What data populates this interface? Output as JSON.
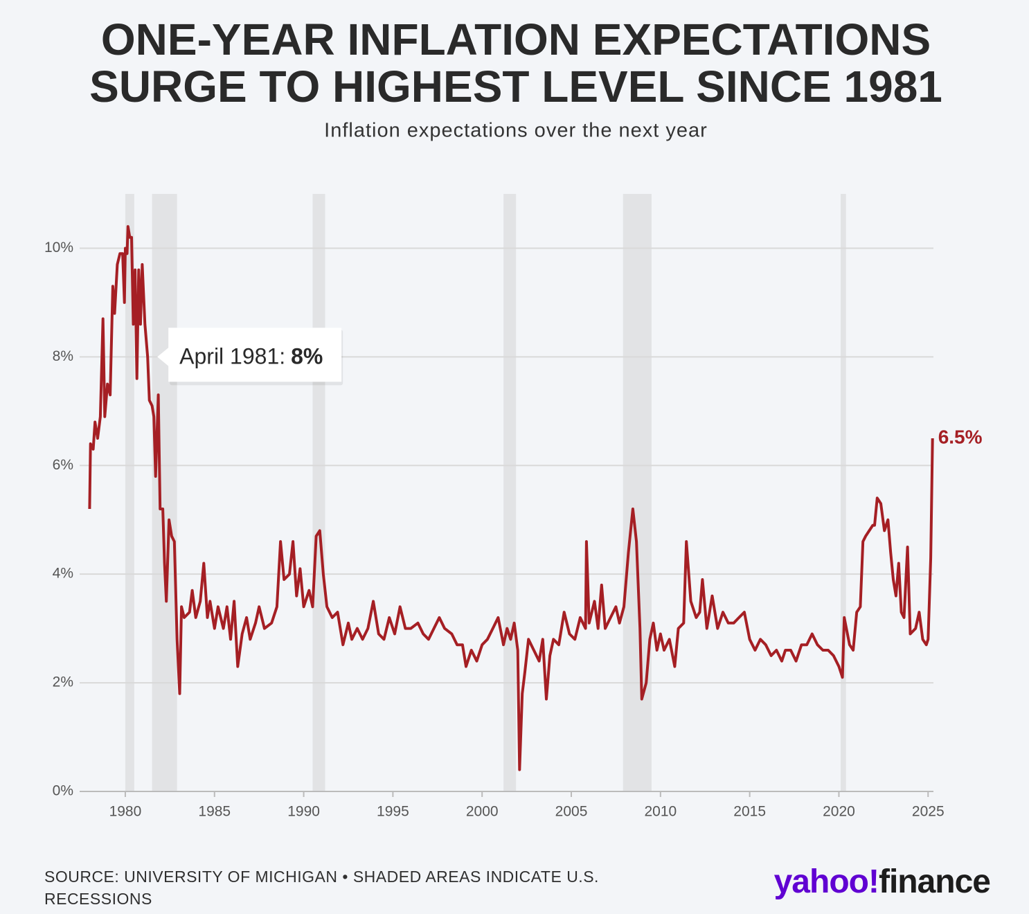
{
  "chart_data": {
    "type": "line",
    "title": "ONE-YEAR INFLATION EXPECTATIONS",
    "title_line2": "SURGE TO HIGHEST LEVEL SINCE 1981",
    "subtitle": "Inflation expectations over the next year",
    "xlim": [
      1977.44,
      2025.3
    ],
    "xticks": [
      1980,
      1985,
      1990,
      1995,
      2000,
      2005,
      2010,
      2015,
      2020,
      2025
    ],
    "ylim": [
      0,
      11
    ],
    "yticks": [
      {
        "value": 0,
        "label": "0%"
      },
      {
        "value": 2,
        "label": "2%"
      },
      {
        "value": 4,
        "label": "4%"
      },
      {
        "value": 6,
        "label": "6%"
      },
      {
        "value": 8,
        "label": "8%"
      },
      {
        "value": 10,
        "label": "10%"
      }
    ],
    "grid": true,
    "recessions": [
      [
        1980.0,
        1980.5
      ],
      [
        1981.5,
        1982.9
      ],
      [
        1990.5,
        1991.2
      ],
      [
        2001.2,
        2001.9
      ],
      [
        2007.9,
        2009.5
      ],
      [
        2020.1,
        2020.4
      ]
    ],
    "recession_color": "#e2e3e5",
    "series": [
      {
        "name": "One-year inflation expectations",
        "color": "#a51f24",
        "x": [
          1978.0,
          1978.05,
          1978.2,
          1978.3,
          1978.45,
          1978.6,
          1978.75,
          1978.85,
          1979.0,
          1979.15,
          1979.3,
          1979.4,
          1979.55,
          1979.7,
          1979.85,
          1979.95,
          1980.0,
          1980.1,
          1980.15,
          1980.25,
          1980.35,
          1980.45,
          1980.55,
          1980.65,
          1980.75,
          1980.85,
          1980.95,
          1981.1,
          1981.25,
          1981.35,
          1981.5,
          1981.6,
          1981.7,
          1981.85,
          1981.95,
          1982.1,
          1982.2,
          1982.3,
          1982.45,
          1982.6,
          1982.75,
          1982.9,
          1983.05,
          1983.15,
          1983.3,
          1983.6,
          1983.75,
          1983.95,
          1984.2,
          1984.4,
          1984.6,
          1984.75,
          1985.0,
          1985.2,
          1985.5,
          1985.7,
          1985.9,
          1986.1,
          1986.3,
          1986.55,
          1986.8,
          1987.0,
          1987.3,
          1987.5,
          1987.8,
          1988.2,
          1988.5,
          1988.7,
          1988.9,
          1989.2,
          1989.4,
          1989.6,
          1989.8,
          1990.0,
          1990.3,
          1990.5,
          1990.7,
          1990.9,
          1991.1,
          1991.3,
          1991.6,
          1991.9,
          1992.2,
          1992.5,
          1992.7,
          1993.0,
          1993.3,
          1993.6,
          1993.9,
          1994.2,
          1994.5,
          1994.8,
          1995.1,
          1995.4,
          1995.7,
          1996.0,
          1996.4,
          1996.7,
          1997.0,
          1997.3,
          1997.6,
          1997.9,
          1998.3,
          1998.6,
          1998.9,
          1999.1,
          1999.4,
          1999.7,
          2000.0,
          2000.3,
          2000.6,
          2000.9,
          2001.2,
          2001.4,
          2001.6,
          2001.8,
          2002.0,
          2002.1,
          2002.25,
          2002.4,
          2002.6,
          2002.9,
          2003.2,
          2003.4,
          2003.6,
          2003.8,
          2004.0,
          2004.3,
          2004.6,
          2004.9,
          2005.2,
          2005.5,
          2005.8,
          2005.85,
          2006.0,
          2006.3,
          2006.5,
          2006.7,
          2006.9,
          2007.2,
          2007.5,
          2007.7,
          2007.95,
          2008.2,
          2008.45,
          2008.65,
          2008.85,
          2008.95,
          2009.2,
          2009.4,
          2009.6,
          2009.8,
          2010.0,
          2010.2,
          2010.5,
          2010.8,
          2011.0,
          2011.3,
          2011.45,
          2011.7,
          2012.0,
          2012.2,
          2012.35,
          2012.6,
          2012.9,
          2013.2,
          2013.5,
          2013.8,
          2014.1,
          2014.4,
          2014.7,
          2015.0,
          2015.3,
          2015.6,
          2015.9,
          2016.2,
          2016.5,
          2016.8,
          2017.0,
          2017.3,
          2017.6,
          2017.9,
          2018.2,
          2018.5,
          2018.8,
          2019.1,
          2019.4,
          2019.7,
          2020.0,
          2020.2,
          2020.3,
          2020.6,
          2020.8,
          2021.0,
          2021.2,
          2021.35,
          2021.5,
          2021.7,
          2021.9,
          2022.0,
          2022.15,
          2022.35,
          2022.55,
          2022.75,
          2022.9,
          2023.05,
          2023.2,
          2023.35,
          2023.5,
          2023.65,
          2023.85,
          2024.0,
          2024.3,
          2024.5,
          2024.7,
          2024.9,
          2025.0,
          2025.15,
          2025.25
        ],
        "values": [
          5.2,
          6.4,
          6.3,
          6.8,
          6.5,
          6.9,
          8.7,
          6.9,
          7.5,
          7.3,
          9.3,
          8.8,
          9.7,
          9.9,
          9.9,
          9.0,
          10.0,
          9.9,
          10.4,
          10.2,
          10.2,
          8.6,
          9.6,
          7.6,
          9.6,
          8.6,
          9.7,
          8.6,
          8.0,
          7.2,
          7.1,
          6.9,
          5.8,
          7.3,
          5.2,
          5.2,
          4.2,
          3.5,
          5.0,
          4.7,
          4.6,
          2.8,
          1.8,
          3.4,
          3.2,
          3.3,
          3.7,
          3.2,
          3.5,
          4.2,
          3.2,
          3.5,
          3.0,
          3.4,
          3.0,
          3.4,
          2.8,
          3.5,
          2.3,
          2.9,
          3.2,
          2.8,
          3.1,
          3.4,
          3.0,
          3.1,
          3.4,
          4.6,
          3.9,
          4.0,
          4.6,
          3.6,
          4.1,
          3.4,
          3.7,
          3.4,
          4.7,
          4.8,
          4.0,
          3.4,
          3.2,
          3.3,
          2.7,
          3.1,
          2.8,
          3.0,
          2.8,
          3.0,
          3.5,
          2.9,
          2.8,
          3.2,
          2.9,
          3.4,
          3.0,
          3.0,
          3.1,
          2.9,
          2.8,
          3.0,
          3.2,
          3.0,
          2.9,
          2.7,
          2.7,
          2.3,
          2.6,
          2.4,
          2.7,
          2.8,
          3.0,
          3.2,
          2.7,
          3.0,
          2.8,
          3.1,
          2.6,
          0.4,
          1.8,
          2.2,
          2.8,
          2.6,
          2.4,
          2.8,
          1.7,
          2.5,
          2.8,
          2.7,
          3.3,
          2.9,
          2.8,
          3.2,
          3.0,
          4.6,
          3.1,
          3.5,
          3.0,
          3.8,
          3.0,
          3.2,
          3.4,
          3.1,
          3.4,
          4.4,
          5.2,
          4.6,
          3.0,
          1.7,
          2.0,
          2.8,
          3.1,
          2.6,
          2.9,
          2.6,
          2.8,
          2.3,
          3.0,
          3.1,
          4.6,
          3.5,
          3.2,
          3.3,
          3.9,
          3.0,
          3.6,
          3.0,
          3.3,
          3.1,
          3.1,
          3.2,
          3.3,
          2.8,
          2.6,
          2.8,
          2.7,
          2.5,
          2.6,
          2.4,
          2.6,
          2.6,
          2.4,
          2.7,
          2.7,
          2.9,
          2.7,
          2.6,
          2.6,
          2.5,
          2.3,
          2.1,
          3.2,
          2.7,
          2.6,
          3.3,
          3.4,
          4.6,
          4.7,
          4.8,
          4.9,
          4.9,
          5.4,
          5.3,
          4.8,
          5.0,
          4.4,
          3.9,
          3.6,
          4.2,
          3.3,
          3.2,
          4.5,
          2.9,
          3.0,
          3.3,
          2.8,
          2.7,
          2.8,
          4.3,
          6.5
        ],
        "last_label": "6.5%"
      }
    ],
    "annotation": {
      "x": 1981.25,
      "label": "April 1981:",
      "value_label": "8%"
    },
    "source": "SOURCE: UNIVERSITY OF MICHIGAN • SHADED AREAS INDICATE U.S. RECESSIONS",
    "logo": {
      "brand": "yahoo!",
      "product": "finance"
    }
  }
}
